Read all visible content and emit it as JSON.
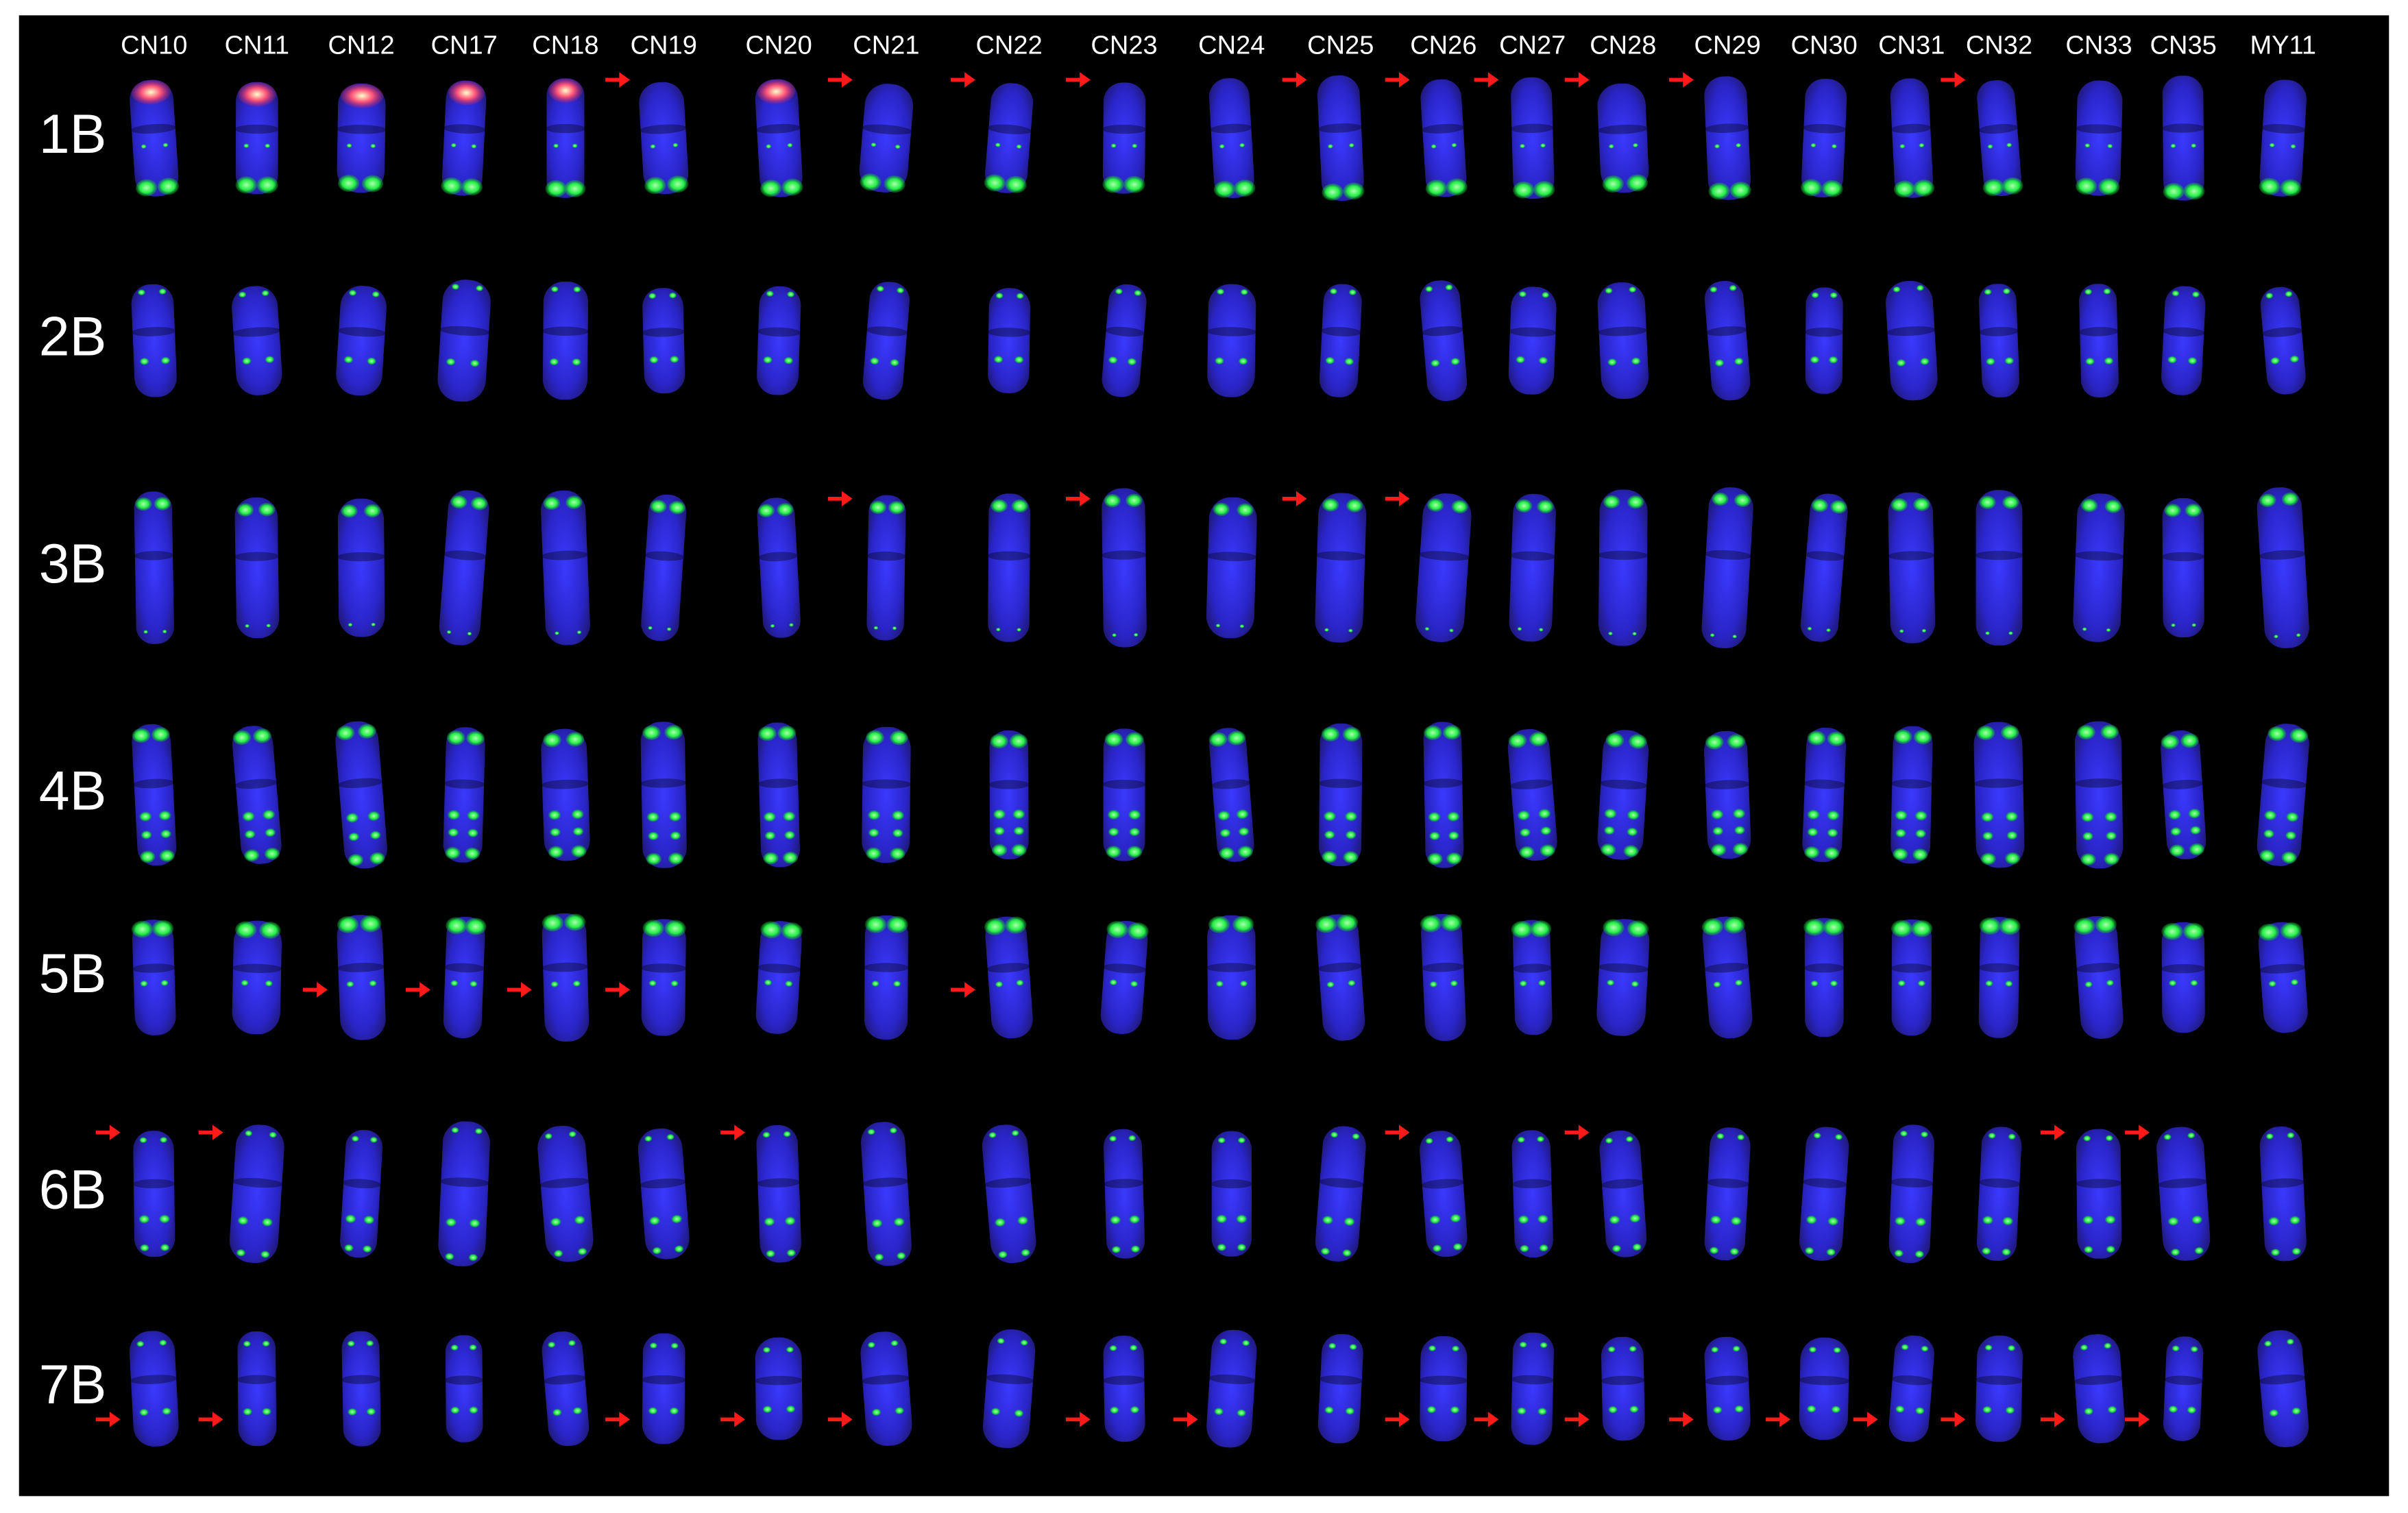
{
  "column_labels": [
    "CN10",
    "CN11",
    "CN12",
    "CN17",
    "CN18",
    "CN19",
    "CN20",
    "CN21",
    "CN22",
    "CN23",
    "CN24",
    "CN25",
    "CN26",
    "CN27",
    "CN28",
    "CN29",
    "CN30",
    "CN31",
    "CN32",
    "CN33",
    "CN35",
    "MY11"
  ],
  "row_labels": [
    "1B",
    "2B",
    "3B",
    "4B",
    "5B",
    "6B",
    "7B"
  ]
}
